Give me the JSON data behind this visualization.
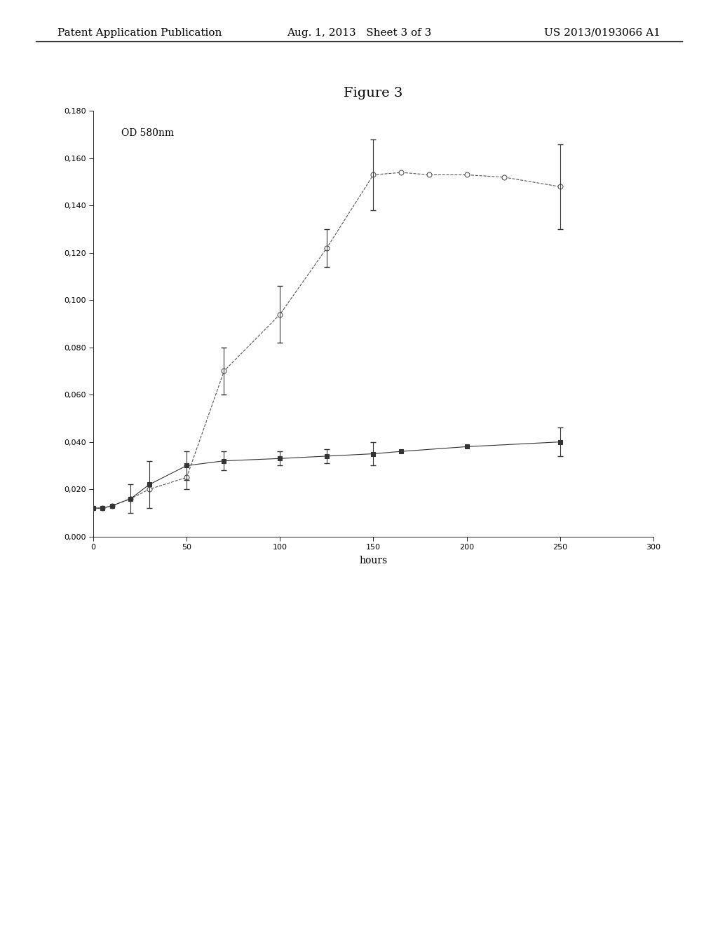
{
  "title": "Figure 3",
  "ylabel": "OD 580nm",
  "xlabel": "hours",
  "xlim": [
    0,
    300
  ],
  "ylim": [
    0.0,
    0.18
  ],
  "xticks": [
    0,
    50,
    100,
    150,
    200,
    250,
    300
  ],
  "yticks": [
    0.0,
    0.02,
    0.04,
    0.06,
    0.08,
    0.1,
    0.12,
    0.14,
    0.16,
    0.18
  ],
  "line1": {
    "x": [
      0,
      5,
      10,
      20,
      30,
      50,
      70,
      100,
      125,
      150,
      165,
      180,
      200,
      220,
      250
    ],
    "y": [
      0.012,
      0.012,
      0.013,
      0.016,
      0.02,
      0.025,
      0.07,
      0.094,
      0.122,
      0.153,
      0.154,
      0.153,
      0.153,
      0.152,
      0.148
    ],
    "color": "#555555",
    "linestyle": "--",
    "marker": "o",
    "markersize": 5,
    "markerfacecolor": "white",
    "err_color": "#333333",
    "err_points_x": [
      50,
      70,
      100,
      125,
      150,
      250
    ],
    "err_points_y": [
      0.025,
      0.07,
      0.094,
      0.122,
      0.153,
      0.148
    ],
    "err_points_low": [
      0.005,
      0.01,
      0.012,
      0.008,
      0.015,
      0.018
    ],
    "err_points_high": [
      0.005,
      0.01,
      0.012,
      0.008,
      0.015,
      0.018
    ]
  },
  "line2": {
    "x": [
      0,
      5,
      10,
      20,
      30,
      50,
      70,
      100,
      125,
      150,
      165,
      200,
      250
    ],
    "y": [
      0.012,
      0.012,
      0.013,
      0.016,
      0.022,
      0.03,
      0.032,
      0.033,
      0.034,
      0.035,
      0.036,
      0.038,
      0.04
    ],
    "color": "#333333",
    "linestyle": "-",
    "marker": "s",
    "markersize": 5,
    "markerfacecolor": "#333333",
    "err_color": "#333333",
    "err_points_x": [
      20,
      30,
      50,
      70,
      100,
      125,
      150,
      250
    ],
    "err_points_y": [
      0.016,
      0.022,
      0.03,
      0.032,
      0.033,
      0.034,
      0.035,
      0.04
    ],
    "err_points_low": [
      0.006,
      0.01,
      0.006,
      0.004,
      0.003,
      0.003,
      0.005,
      0.006
    ],
    "err_points_high": [
      0.006,
      0.01,
      0.006,
      0.004,
      0.003,
      0.003,
      0.005,
      0.006
    ]
  },
  "background_color": "#ffffff",
  "header_left": "Patent Application Publication",
  "header_center": "Aug. 1, 2013   Sheet 3 of 3",
  "header_right": "US 2013/0193066 A1"
}
